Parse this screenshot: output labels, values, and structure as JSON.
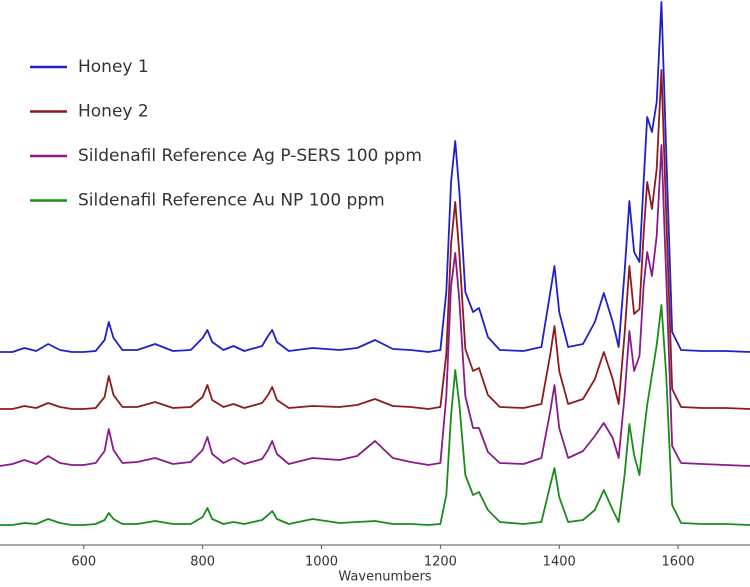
{
  "chart_data": {
    "type": "line",
    "x_label": "Wavenumbers",
    "legend": "upper left",
    "xlim": [
      459,
      1721
    ],
    "xticks": [
      600,
      800,
      1000,
      1200,
      1400,
      1600
    ],
    "ylim": [
      0,
      545
    ],
    "x": [
      459,
      480,
      500,
      520,
      540,
      560,
      580,
      600,
      620,
      635,
      642,
      650,
      665,
      690,
      720,
      750,
      780,
      800,
      808,
      816,
      835,
      852,
      870,
      900,
      910,
      917,
      925,
      945,
      985,
      1030,
      1060,
      1090,
      1120,
      1150,
      1180,
      1200,
      1210,
      1218,
      1225,
      1232,
      1242,
      1255,
      1265,
      1280,
      1300,
      1340,
      1370,
      1385,
      1392,
      1400,
      1415,
      1440,
      1460,
      1475,
      1490,
      1500,
      1510,
      1518,
      1526,
      1535,
      1542,
      1548,
      1556,
      1564,
      1572,
      1580,
      1590,
      1605,
      1640,
      1680,
      1721
    ],
    "series": [
      {
        "name": "Honey 1",
        "color": "#2020c8",
        "values": [
          193,
          193,
          197,
          194,
          201,
          195,
          193,
          193,
          194,
          205,
          223,
          207,
          195,
          195,
          201,
          194,
          195,
          207,
          215,
          203,
          195,
          199,
          194,
          199,
          209,
          215,
          203,
          194,
          197,
          195,
          197,
          205,
          196,
          195,
          193,
          195,
          253,
          363,
          404,
          353,
          253,
          233,
          237,
          208,
          195,
          194,
          198,
          253,
          279,
          233,
          198,
          201,
          223,
          252,
          223,
          198,
          273,
          344,
          293,
          283,
          363,
          428,
          413,
          443,
          543,
          393,
          213,
          195,
          194,
          194,
          193
        ]
      },
      {
        "name": "Honey 2",
        "color": "#8b1c1c",
        "values": [
          136,
          136,
          139,
          137,
          142,
          138,
          136,
          136,
          137,
          148,
          169,
          150,
          138,
          138,
          143,
          137,
          138,
          148,
          160,
          145,
          138,
          141,
          137,
          142,
          150,
          158,
          145,
          137,
          139,
          138,
          140,
          146,
          139,
          138,
          136,
          138,
          191,
          301,
          343,
          291,
          196,
          174,
          177,
          150,
          138,
          137,
          141,
          191,
          219,
          174,
          141,
          146,
          166,
          193,
          166,
          141,
          211,
          279,
          231,
          236,
          311,
          363,
          336,
          376,
          475,
          331,
          156,
          138,
          137,
          137,
          136
        ]
      },
      {
        "name": "Sildenafil Reference Ag P-SERS 100 ppm",
        "color": "#8b1a8b",
        "values": [
          79,
          81,
          85,
          81,
          89,
          82,
          80,
          80,
          82,
          94,
          116,
          95,
          82,
          83,
          87,
          81,
          83,
          95,
          108,
          91,
          82,
          87,
          81,
          86,
          95,
          104,
          91,
          81,
          87,
          85,
          89,
          104,
          87,
          83,
          80,
          82,
          149,
          259,
          292,
          244,
          149,
          117,
          117,
          93,
          82,
          81,
          87,
          134,
          160,
          117,
          87,
          94,
          109,
          122,
          107,
          87,
          149,
          214,
          174,
          189,
          259,
          293,
          269,
          309,
          400,
          269,
          99,
          82,
          81,
          80,
          79
        ]
      },
      {
        "name": "Sildenafil Reference Au NP 100 ppm",
        "color": "#1a8c1a",
        "values": [
          20,
          20,
          22,
          21,
          26,
          22,
          20,
          20,
          21,
          25,
          32,
          26,
          21,
          21,
          24,
          21,
          21,
          28,
          37,
          26,
          21,
          23,
          21,
          25,
          30,
          34,
          26,
          21,
          26,
          22,
          23,
          24,
          21,
          21,
          20,
          21,
          50,
          130,
          175,
          140,
          70,
          50,
          53,
          35,
          23,
          21,
          23,
          60,
          77,
          48,
          23,
          25,
          35,
          55,
          35,
          23,
          70,
          121,
          90,
          70,
          110,
          140,
          170,
          200,
          240,
          170,
          40,
          22,
          21,
          21,
          20
        ]
      }
    ]
  }
}
